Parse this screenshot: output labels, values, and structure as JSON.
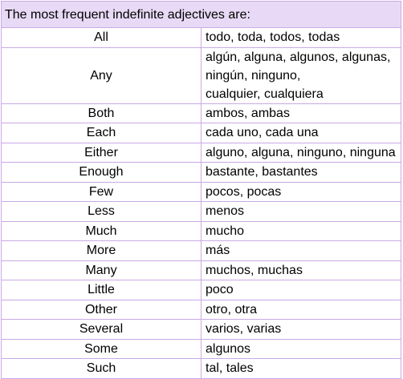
{
  "table": {
    "header": "The most frequent indefinite adjectives are:",
    "rows": [
      {
        "english": "All",
        "spanish": [
          "todo, toda, todos, todas"
        ]
      },
      {
        "english": "Any",
        "spanish": [
          "algún, alguna, algunos, algunas, ningún, ninguno,",
          "cualquier, cualquiera"
        ]
      },
      {
        "english": "Both",
        "spanish": [
          "ambos, ambas"
        ]
      },
      {
        "english": "Each",
        "spanish": [
          "cada uno, cada una"
        ]
      },
      {
        "english": "Either",
        "spanish": [
          "alguno, alguna, ninguno, ninguna"
        ]
      },
      {
        "english": "Enough",
        "spanish": [
          "bastante, bastantes"
        ]
      },
      {
        "english": "Few",
        "spanish": [
          "pocos, pocas"
        ]
      },
      {
        "english": "Less",
        "spanish": [
          "menos"
        ]
      },
      {
        "english": "Much",
        "spanish": [
          "mucho"
        ]
      },
      {
        "english": "More",
        "spanish": [
          "más"
        ]
      },
      {
        "english": "Many",
        "spanish": [
          "muchos, muchas"
        ]
      },
      {
        "english": "Little",
        "spanish": [
          "poco"
        ]
      },
      {
        "english": "Other",
        "spanish": [
          "otro, otra"
        ]
      },
      {
        "english": "Several",
        "spanish": [
          "varios, varias"
        ]
      },
      {
        "english": "Some",
        "spanish": [
          "algunos"
        ]
      },
      {
        "english": "Such",
        "spanish": [
          "tal, tales"
        ]
      }
    ]
  },
  "colors": {
    "header_background": "#e8daf6",
    "border": "#c9a9e6",
    "text": "#000000"
  }
}
